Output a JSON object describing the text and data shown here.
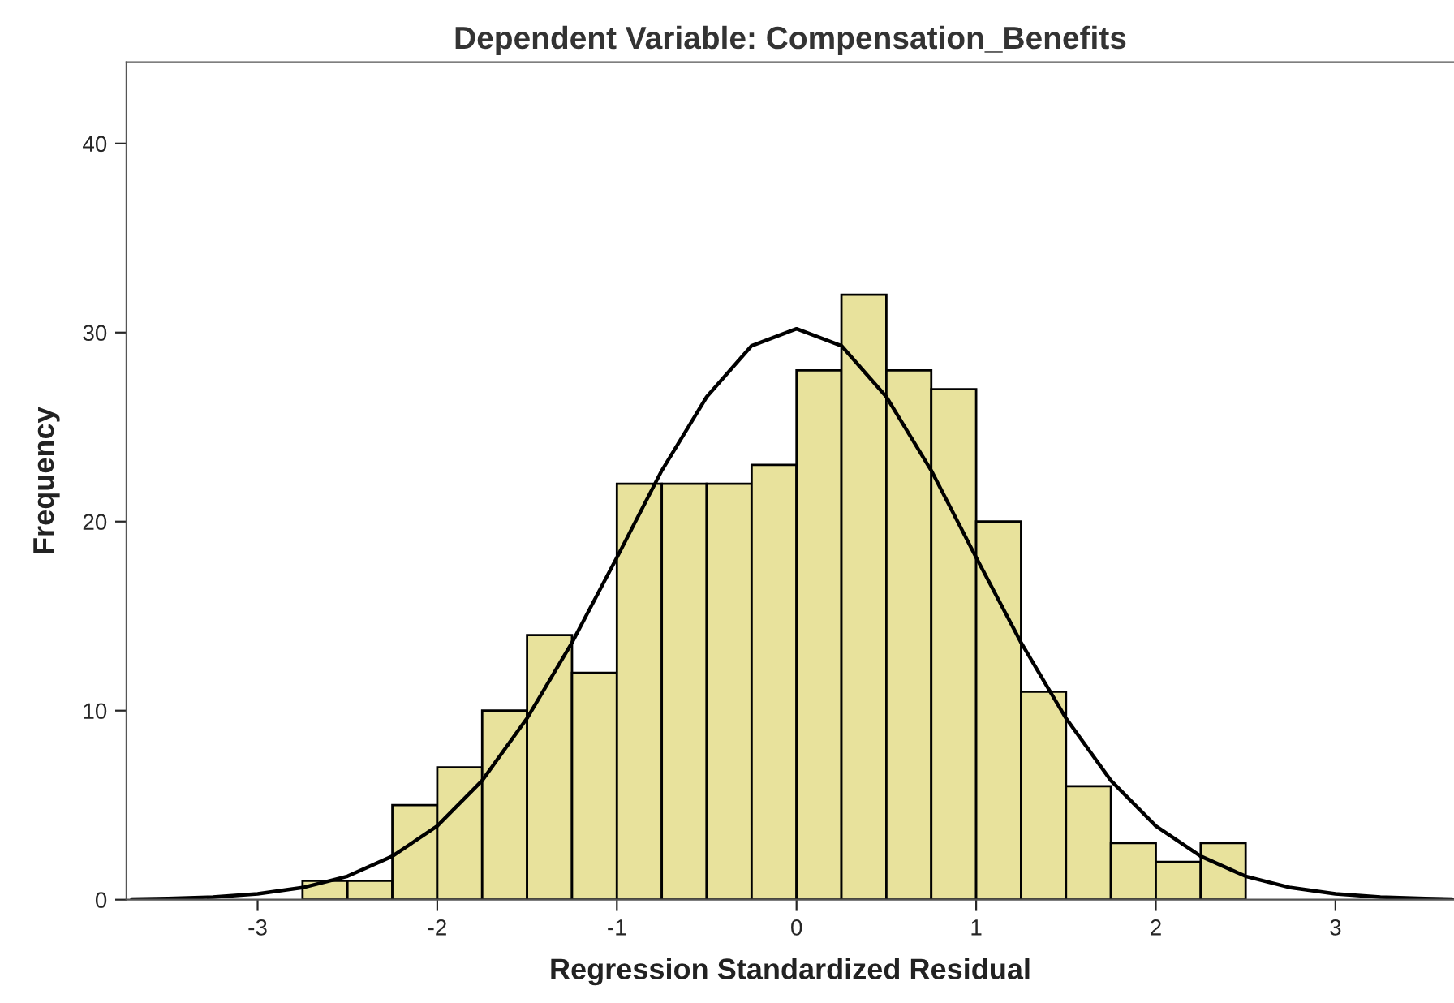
{
  "chart_data": {
    "type": "histogram",
    "title": "Dependent Variable: Compensation_Benefits",
    "xlabel": "Regression Standardized Residual",
    "ylabel": "Frequency",
    "bins": [
      -2.75,
      -2.5,
      -2.25,
      -2,
      -1.75,
      -1.5,
      -1.25,
      -1,
      -0.75,
      -0.5,
      -0.25,
      0,
      0.25,
      0.5,
      0.75,
      1,
      1.25,
      1.5,
      1.75,
      2,
      2.25,
      2.5
    ],
    "values": [
      1,
      1,
      5,
      7,
      10,
      14,
      12,
      22,
      22,
      22,
      23,
      28,
      32,
      28,
      27,
      20,
      11,
      6,
      3,
      2,
      3
    ],
    "color": "#e8e29c",
    "series": [
      {
        "type": "line",
        "color": "#000000",
        "x": [
          -3.7,
          -3.5,
          -3.25,
          -3,
          -2.75,
          -2.5,
          -2.25,
          -2,
          -1.75,
          -1.5,
          -1.25,
          -1,
          -0.75,
          -0.5,
          -0.25,
          0,
          0.25,
          0.5,
          0.75,
          1,
          1.25,
          1.5,
          1.75,
          2,
          2.25,
          2.5,
          2.75,
          3,
          3.25,
          3.5,
          3.65
        ],
        "values": [
          0.03,
          0.06,
          0.14,
          0.31,
          0.64,
          1.24,
          2.3,
          3.9,
          6.3,
          9.6,
          13.6,
          18.1,
          22.7,
          26.6,
          29.3,
          30.2,
          29.3,
          26.6,
          22.7,
          18.1,
          13.6,
          9.6,
          6.3,
          3.9,
          2.3,
          1.24,
          0.64,
          0.31,
          0.14,
          0.06,
          0.03
        ]
      }
    ],
    "xlim": [
      -3.73,
      3.66
    ],
    "ylim": [
      0,
      44.3
    ],
    "xticks": [
      -3,
      -2,
      -1,
      0,
      1,
      2,
      3
    ],
    "yticks": [
      0,
      10,
      20,
      30,
      40
    ],
    "grid": false
  }
}
